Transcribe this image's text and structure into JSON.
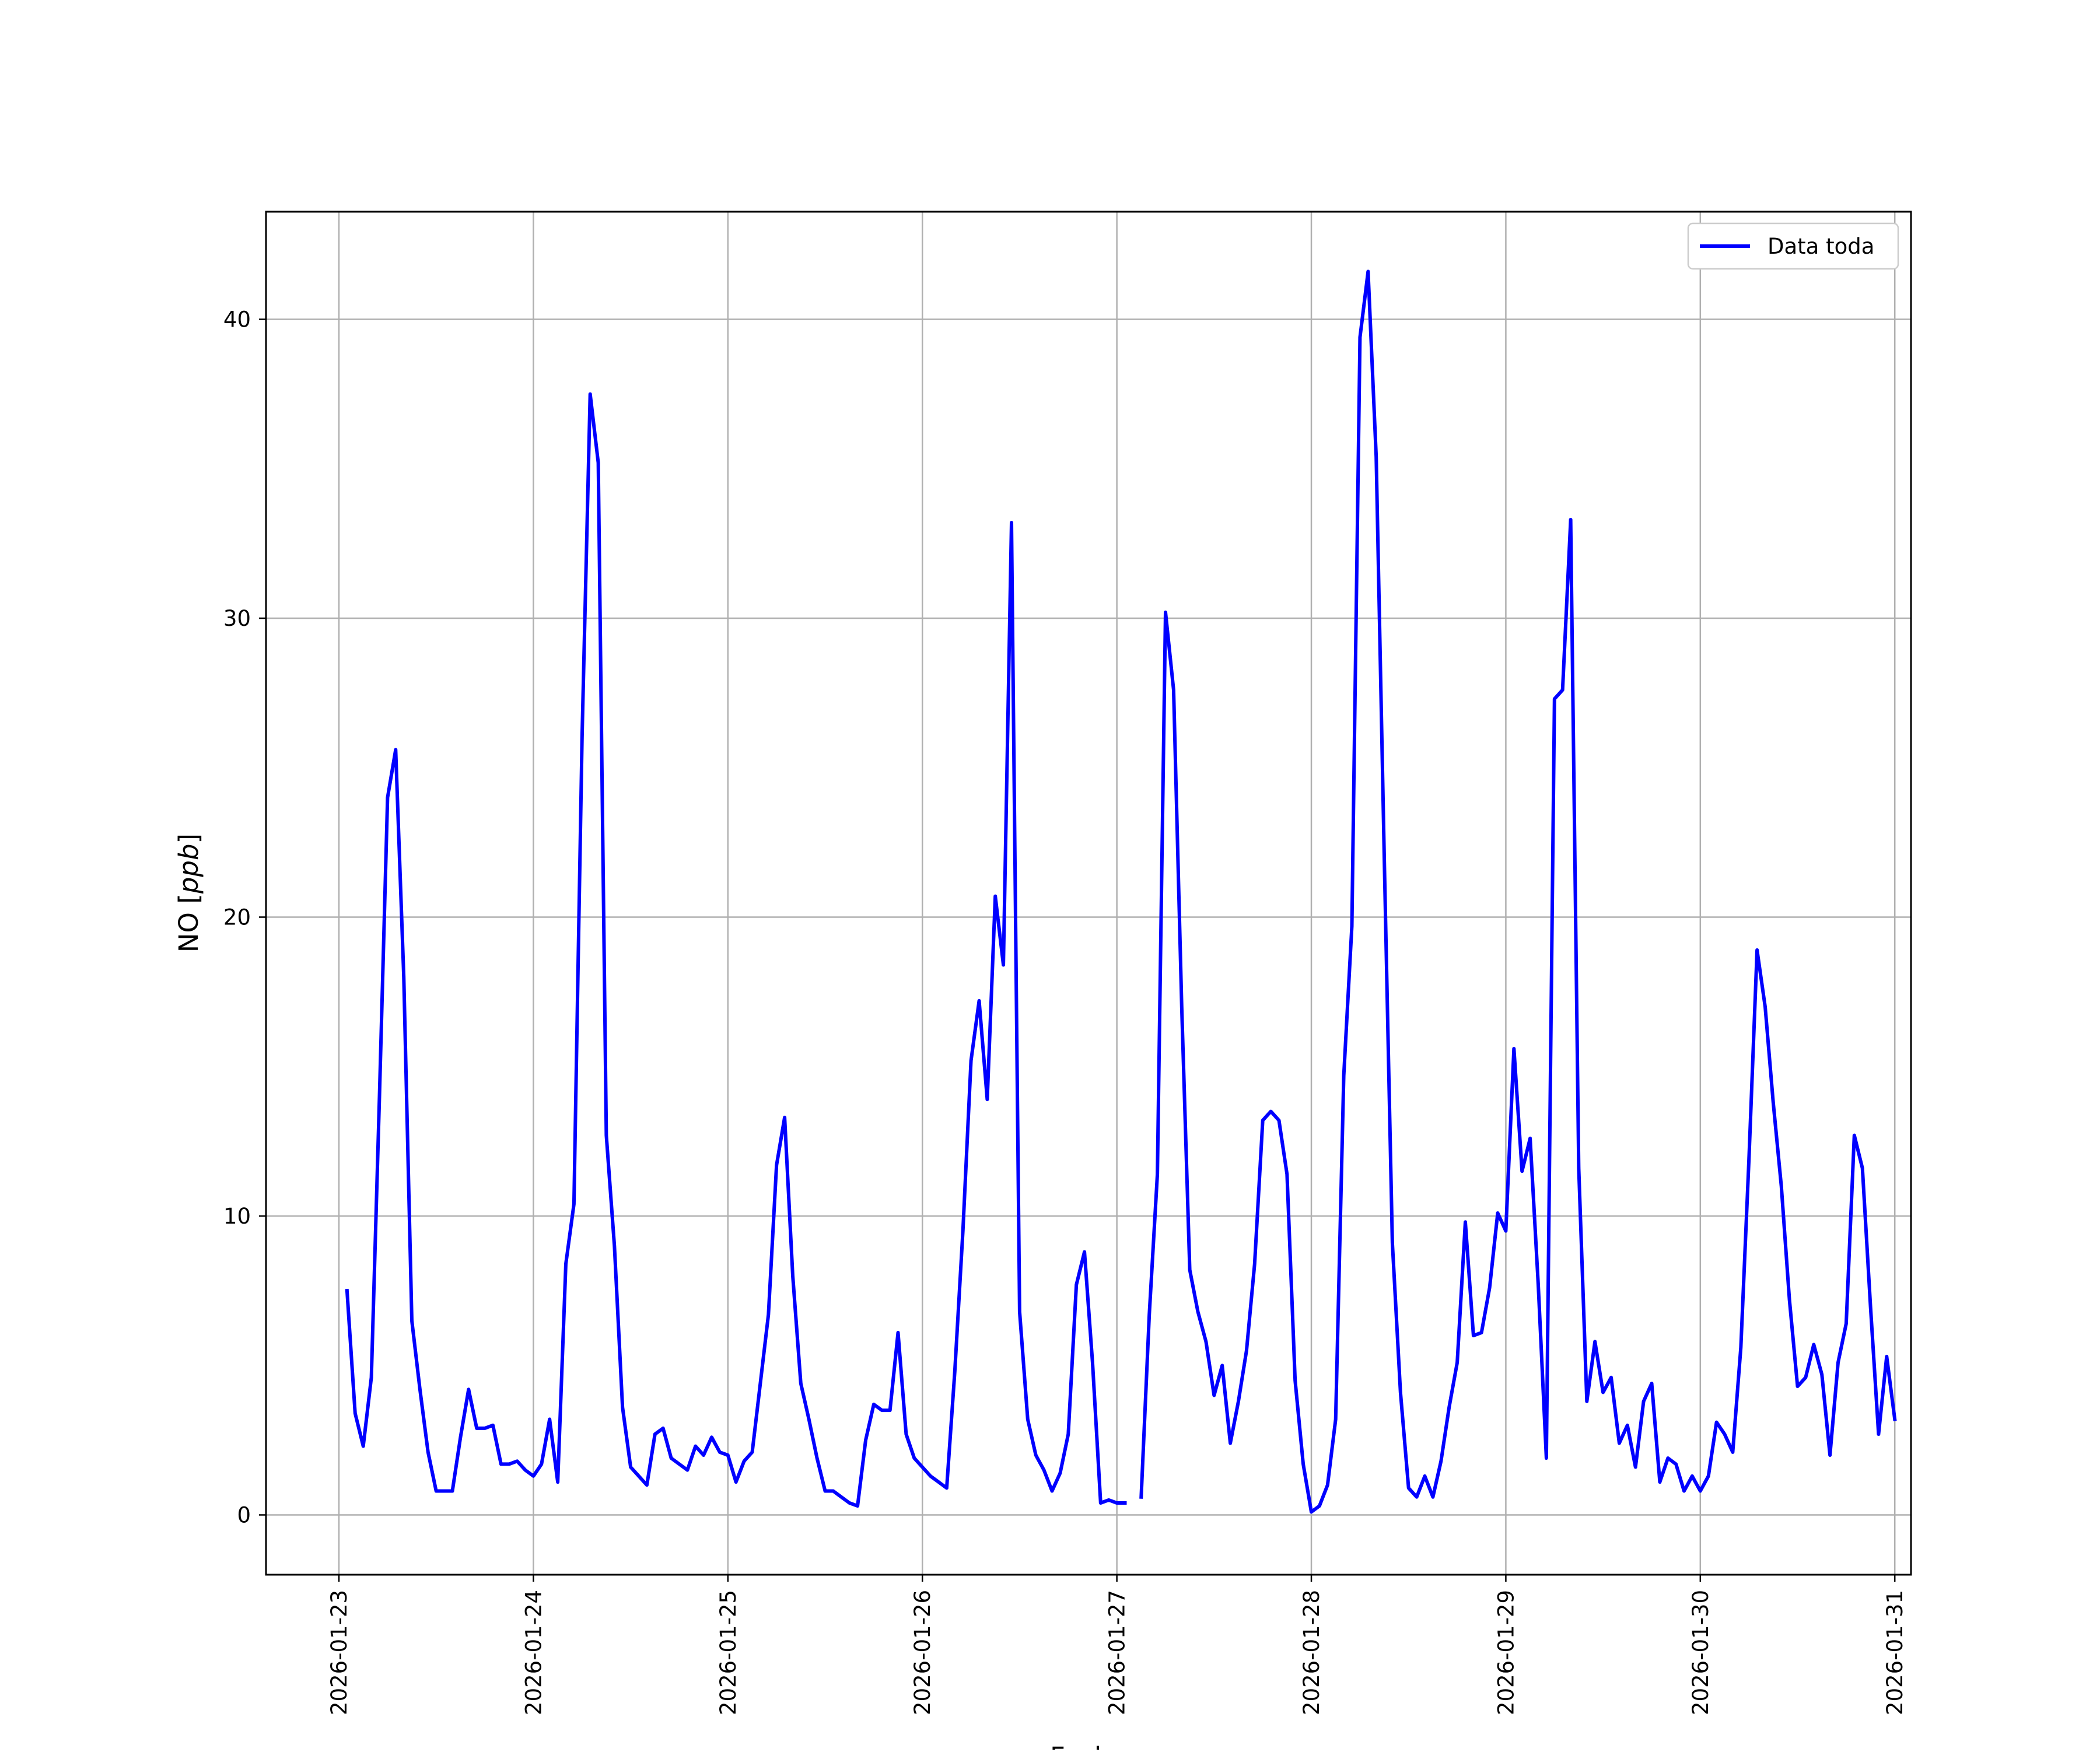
{
  "chart_data": {
    "type": "line",
    "title": "",
    "xlabel": "Fecha",
    "ylabel_prefix": "NO [",
    "ylabel_unit": "ppb",
    "ylabel_suffix": "]",
    "x_ticks": [
      "2026-01-23",
      "2026-01-24",
      "2026-01-25",
      "2026-01-26",
      "2026-01-27",
      "2026-01-28",
      "2026-01-29",
      "2026-01-30",
      "2026-01-31"
    ],
    "y_ticks": [
      0,
      10,
      20,
      30,
      40
    ],
    "xlim": [
      "2026-01-22T15:00",
      "2026-01-31T02:00"
    ],
    "ylim": [
      -2,
      43.6
    ],
    "grid": true,
    "legend_position": "top-right",
    "series": [
      {
        "name": "Data toda",
        "color": "#0000ff",
        "points": [
          [
            "2026-01-23T01:00",
            7.5
          ],
          [
            "2026-01-23T02:00",
            3.4
          ],
          [
            "2026-01-23T03:00",
            2.3
          ],
          [
            "2026-01-23T04:00",
            4.6
          ],
          [
            "2026-01-23T05:00",
            14.0
          ],
          [
            "2026-01-23T06:00",
            24.0
          ],
          [
            "2026-01-23T07:00",
            25.6
          ],
          [
            "2026-01-23T08:00",
            18.0
          ],
          [
            "2026-01-23T09:00",
            6.5
          ],
          [
            "2026-01-23T10:00",
            4.2
          ],
          [
            "2026-01-23T11:00",
            2.1
          ],
          [
            "2026-01-23T12:00",
            0.8
          ],
          [
            "2026-01-23T13:00",
            0.8
          ],
          [
            "2026-01-23T14:00",
            0.8
          ],
          [
            "2026-01-23T15:00",
            2.6
          ],
          [
            "2026-01-23T16:00",
            4.2
          ],
          [
            "2026-01-23T17:00",
            2.9
          ],
          [
            "2026-01-23T18:00",
            2.9
          ],
          [
            "2026-01-23T19:00",
            3.0
          ],
          [
            "2026-01-23T20:00",
            1.7
          ],
          [
            "2026-01-23T21:00",
            1.7
          ],
          [
            "2026-01-23T22:00",
            1.8
          ],
          [
            "2026-01-23T23:00",
            1.5
          ],
          [
            "2026-01-24T00:00",
            1.3
          ],
          [
            "2026-01-24T01:00",
            1.7
          ],
          [
            "2026-01-24T02:00",
            3.2
          ],
          [
            "2026-01-24T03:00",
            1.1
          ],
          [
            "2026-01-24T04:00",
            8.4
          ],
          [
            "2026-01-24T05:00",
            10.4
          ],
          [
            "2026-01-24T06:00",
            26.0
          ],
          [
            "2026-01-24T07:00",
            37.5
          ],
          [
            "2026-01-24T08:00",
            35.2
          ],
          [
            "2026-01-24T09:00",
            12.7
          ],
          [
            "2026-01-24T10:00",
            9.0
          ],
          [
            "2026-01-24T11:00",
            3.6
          ],
          [
            "2026-01-24T12:00",
            1.6
          ],
          [
            "2026-01-24T13:00",
            1.3
          ],
          [
            "2026-01-24T14:00",
            1.0
          ],
          [
            "2026-01-24T15:00",
            2.7
          ],
          [
            "2026-01-24T16:00",
            2.9
          ],
          [
            "2026-01-24T17:00",
            1.9
          ],
          [
            "2026-01-24T18:00",
            1.7
          ],
          [
            "2026-01-24T19:00",
            1.5
          ],
          [
            "2026-01-24T20:00",
            2.3
          ],
          [
            "2026-01-24T21:00",
            2.0
          ],
          [
            "2026-01-24T22:00",
            2.6
          ],
          [
            "2026-01-24T23:00",
            2.1
          ],
          [
            "2026-01-25T00:00",
            2.0
          ],
          [
            "2026-01-25T01:00",
            1.1
          ],
          [
            "2026-01-25T02:00",
            1.8
          ],
          [
            "2026-01-25T03:00",
            2.1
          ],
          [
            "2026-01-25T04:00",
            4.4
          ],
          [
            "2026-01-25T05:00",
            6.7
          ],
          [
            "2026-01-25T06:00",
            11.7
          ],
          [
            "2026-01-25T07:00",
            13.3
          ],
          [
            "2026-01-25T08:00",
            8.0
          ],
          [
            "2026-01-25T09:00",
            4.4
          ],
          [
            "2026-01-25T10:00",
            3.2
          ],
          [
            "2026-01-25T11:00",
            1.9
          ],
          [
            "2026-01-25T12:00",
            0.8
          ],
          [
            "2026-01-25T13:00",
            0.8
          ],
          [
            "2026-01-25T14:00",
            0.6
          ],
          [
            "2026-01-25T15:00",
            0.4
          ],
          [
            "2026-01-25T16:00",
            0.3
          ],
          [
            "2026-01-25T17:00",
            2.5
          ],
          [
            "2026-01-25T18:00",
            3.7
          ],
          [
            "2026-01-25T19:00",
            3.5
          ],
          [
            "2026-01-25T20:00",
            3.5
          ],
          [
            "2026-01-25T21:00",
            6.1
          ],
          [
            "2026-01-25T22:00",
            2.7
          ],
          [
            "2026-01-25T23:00",
            1.9
          ],
          [
            "2026-01-26T00:00",
            1.6
          ],
          [
            "2026-01-26T01:00",
            1.3
          ],
          [
            "2026-01-26T02:00",
            1.1
          ],
          [
            "2026-01-26T03:00",
            0.9
          ],
          [
            "2026-01-26T04:00",
            4.8
          ],
          [
            "2026-01-26T05:00",
            9.5
          ],
          [
            "2026-01-26T06:00",
            15.2
          ],
          [
            "2026-01-26T07:00",
            17.2
          ],
          [
            "2026-01-26T08:00",
            13.9
          ],
          [
            "2026-01-26T09:00",
            20.7
          ],
          [
            "2026-01-26T10:00",
            18.4
          ],
          [
            "2026-01-26T11:00",
            33.2
          ],
          [
            "2026-01-26T12:00",
            6.8
          ],
          [
            "2026-01-26T13:00",
            3.2
          ],
          [
            "2026-01-26T14:00",
            2.0
          ],
          [
            "2026-01-26T15:00",
            1.5
          ],
          [
            "2026-01-26T16:00",
            0.8
          ],
          [
            "2026-01-26T17:00",
            1.4
          ],
          [
            "2026-01-26T18:00",
            2.7
          ],
          [
            "2026-01-26T19:00",
            7.7
          ],
          [
            "2026-01-26T20:00",
            8.8
          ],
          [
            "2026-01-26T21:00",
            5.1
          ],
          [
            "2026-01-26T22:00",
            0.4
          ],
          [
            "2026-01-26T23:00",
            0.5
          ],
          [
            "2026-01-27T00:00",
            0.4
          ],
          [
            "2026-01-27T01:00",
            0.4
          ],
          [
            "2026-01-27T02:00",
            null
          ],
          [
            "2026-01-27T03:00",
            0.6
          ],
          [
            "2026-01-27T04:00",
            6.7
          ],
          [
            "2026-01-27T05:00",
            11.4
          ],
          [
            "2026-01-27T06:00",
            30.2
          ],
          [
            "2026-01-27T07:00",
            27.6
          ],
          [
            "2026-01-27T08:00",
            17.0
          ],
          [
            "2026-01-27T09:00",
            8.2
          ],
          [
            "2026-01-27T10:00",
            6.8
          ],
          [
            "2026-01-27T11:00",
            5.8
          ],
          [
            "2026-01-27T12:00",
            4.0
          ],
          [
            "2026-01-27T13:00",
            5.0
          ],
          [
            "2026-01-27T14:00",
            2.4
          ],
          [
            "2026-01-27T15:00",
            3.8
          ],
          [
            "2026-01-27T16:00",
            5.5
          ],
          [
            "2026-01-27T17:00",
            8.4
          ],
          [
            "2026-01-27T18:00",
            13.2
          ],
          [
            "2026-01-27T19:00",
            13.5
          ],
          [
            "2026-01-27T20:00",
            13.2
          ],
          [
            "2026-01-27T21:00",
            11.4
          ],
          [
            "2026-01-27T22:00",
            4.5
          ],
          [
            "2026-01-27T23:00",
            1.7
          ],
          [
            "2026-01-28T00:00",
            0.1
          ],
          [
            "2026-01-28T01:00",
            0.3
          ],
          [
            "2026-01-28T02:00",
            1.0
          ],
          [
            "2026-01-28T03:00",
            3.2
          ],
          [
            "2026-01-28T04:00",
            14.7
          ],
          [
            "2026-01-28T05:00",
            19.7
          ],
          [
            "2026-01-28T06:00",
            39.4
          ],
          [
            "2026-01-28T07:00",
            41.6
          ],
          [
            "2026-01-28T08:00",
            35.4
          ],
          [
            "2026-01-28T09:00",
            22.0
          ],
          [
            "2026-01-28T10:00",
            9.1
          ],
          [
            "2026-01-28T11:00",
            4.1
          ],
          [
            "2026-01-28T12:00",
            0.9
          ],
          [
            "2026-01-28T13:00",
            0.6
          ],
          [
            "2026-01-28T14:00",
            1.3
          ],
          [
            "2026-01-28T15:00",
            0.6
          ],
          [
            "2026-01-28T16:00",
            1.8
          ],
          [
            "2026-01-28T17:00",
            3.6
          ],
          [
            "2026-01-28T18:00",
            5.1
          ],
          [
            "2026-01-28T19:00",
            9.8
          ],
          [
            "2026-01-28T20:00",
            6.0
          ],
          [
            "2026-01-28T21:00",
            6.1
          ],
          [
            "2026-01-28T22:00",
            7.6
          ],
          [
            "2026-01-28T23:00",
            10.1
          ],
          [
            "2026-01-29T00:00",
            9.5
          ],
          [
            "2026-01-29T01:00",
            15.6
          ],
          [
            "2026-01-29T02:00",
            11.5
          ],
          [
            "2026-01-29T03:00",
            12.6
          ],
          [
            "2026-01-29T04:00",
            7.7
          ],
          [
            "2026-01-29T05:00",
            1.9
          ],
          [
            "2026-01-29T06:00",
            27.3
          ],
          [
            "2026-01-29T07:00",
            27.6
          ],
          [
            "2026-01-29T08:00",
            33.3
          ],
          [
            "2026-01-29T09:00",
            11.6
          ],
          [
            "2026-01-29T10:00",
            3.8
          ],
          [
            "2026-01-29T11:00",
            5.8
          ],
          [
            "2026-01-29T12:00",
            4.1
          ],
          [
            "2026-01-29T13:00",
            4.6
          ],
          [
            "2026-01-29T14:00",
            2.4
          ],
          [
            "2026-01-29T15:00",
            3.0
          ],
          [
            "2026-01-29T16:00",
            1.6
          ],
          [
            "2026-01-29T17:00",
            3.8
          ],
          [
            "2026-01-29T18:00",
            4.4
          ],
          [
            "2026-01-29T19:00",
            1.1
          ],
          [
            "2026-01-29T20:00",
            1.9
          ],
          [
            "2026-01-29T21:00",
            1.7
          ],
          [
            "2026-01-29T22:00",
            0.8
          ],
          [
            "2026-01-29T23:00",
            1.3
          ],
          [
            "2026-01-30T00:00",
            0.8
          ],
          [
            "2026-01-30T01:00",
            1.3
          ],
          [
            "2026-01-30T02:00",
            3.1
          ],
          [
            "2026-01-30T03:00",
            2.7
          ],
          [
            "2026-01-30T04:00",
            2.1
          ],
          [
            "2026-01-30T05:00",
            5.6
          ],
          [
            "2026-01-30T06:00",
            11.9
          ],
          [
            "2026-01-30T07:00",
            18.9
          ],
          [
            "2026-01-30T08:00",
            17.0
          ],
          [
            "2026-01-30T09:00",
            13.8
          ],
          [
            "2026-01-30T10:00",
            11.0
          ],
          [
            "2026-01-30T11:00",
            7.2
          ],
          [
            "2026-01-30T12:00",
            4.3
          ],
          [
            "2026-01-30T13:00",
            4.6
          ],
          [
            "2026-01-30T14:00",
            5.7
          ],
          [
            "2026-01-30T15:00",
            4.7
          ],
          [
            "2026-01-30T16:00",
            2.0
          ],
          [
            "2026-01-30T17:00",
            5.1
          ],
          [
            "2026-01-30T18:00",
            6.4
          ],
          [
            "2026-01-30T19:00",
            12.7
          ],
          [
            "2026-01-30T20:00",
            11.6
          ],
          [
            "2026-01-30T21:00",
            7.0
          ],
          [
            "2026-01-30T22:00",
            2.7
          ],
          [
            "2026-01-30T23:00",
            5.3
          ],
          [
            "2026-01-31T00:00",
            3.2
          ]
        ]
      }
    ]
  }
}
